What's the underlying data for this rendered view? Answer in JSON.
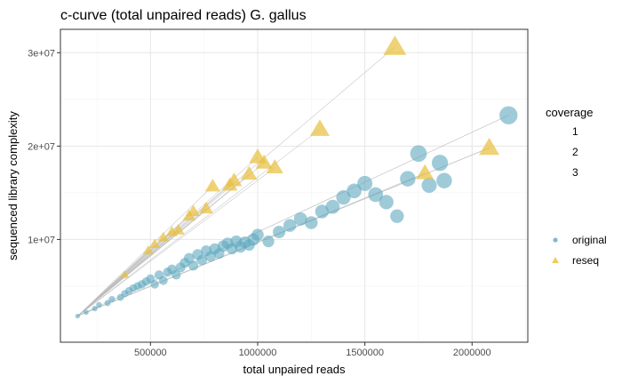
{
  "chart_data": {
    "type": "scatter",
    "title": "c-curve (total unpaired reads) G. gallus",
    "xlabel": "total unpaired reads",
    "ylabel": "sequenced library complexity",
    "xlim": [
      80000,
      2260000
    ],
    "ylim": [
      -1000000,
      32500000
    ],
    "x_ticks": [
      500000,
      1000000,
      1500000,
      2000000
    ],
    "x_tick_labels": [
      "500000",
      "1000000",
      "1500000",
      "2000000"
    ],
    "y_ticks": [
      10000000,
      20000000,
      30000000
    ],
    "y_tick_labels": [
      "1e+07",
      "2e+07",
      "3e+07"
    ],
    "grid": true,
    "legend_position": "right",
    "size_legend": {
      "title": "coverage",
      "entries": [
        "1",
        "2",
        "3"
      ]
    },
    "color_legend": {
      "entries": [
        "original",
        "reseq"
      ]
    },
    "colors": {
      "original": "#5fa9bf",
      "reseq": "#e8bf3c",
      "line": "#bbbbbb"
    },
    "series": [
      {
        "name": "original",
        "shape": "circle",
        "points": [
          [
            160000,
            1800000,
            0.2
          ],
          [
            200000,
            2200000,
            0.25
          ],
          [
            240000,
            2600000,
            0.3
          ],
          [
            260000,
            3000000,
            0.35
          ],
          [
            300000,
            3200000,
            0.4
          ],
          [
            320000,
            3600000,
            0.45
          ],
          [
            360000,
            3800000,
            0.5
          ],
          [
            380000,
            4200000,
            0.55
          ],
          [
            400000,
            4500000,
            0.6
          ],
          [
            420000,
            4800000,
            0.6
          ],
          [
            440000,
            5000000,
            0.65
          ],
          [
            460000,
            5200000,
            0.7
          ],
          [
            480000,
            5500000,
            0.7
          ],
          [
            500000,
            5800000,
            0.75
          ],
          [
            520000,
            5200000,
            0.7
          ],
          [
            540000,
            6200000,
            0.8
          ],
          [
            560000,
            5600000,
            0.75
          ],
          [
            580000,
            6500000,
            0.8
          ],
          [
            600000,
            6800000,
            0.85
          ],
          [
            620000,
            6200000,
            0.8
          ],
          [
            640000,
            7000000,
            0.9
          ],
          [
            660000,
            7500000,
            0.9
          ],
          [
            680000,
            8000000,
            0.95
          ],
          [
            700000,
            7200000,
            0.9
          ],
          [
            720000,
            8400000,
            1.0
          ],
          [
            740000,
            7800000,
            0.95
          ],
          [
            760000,
            8800000,
            1.0
          ],
          [
            780000,
            8200000,
            1.0
          ],
          [
            800000,
            9000000,
            1.05
          ],
          [
            820000,
            8500000,
            1.0
          ],
          [
            840000,
            9300000,
            1.1
          ],
          [
            860000,
            9600000,
            1.1
          ],
          [
            880000,
            9000000,
            1.05
          ],
          [
            900000,
            9800000,
            1.15
          ],
          [
            920000,
            9200000,
            1.1
          ],
          [
            940000,
            9700000,
            1.15
          ],
          [
            960000,
            9400000,
            1.1
          ],
          [
            980000,
            10000000,
            1.2
          ],
          [
            1000000,
            10500000,
            1.2
          ],
          [
            1050000,
            9800000,
            1.15
          ],
          [
            1100000,
            10800000,
            1.25
          ],
          [
            1150000,
            11500000,
            1.3
          ],
          [
            1200000,
            12200000,
            1.35
          ],
          [
            1250000,
            11800000,
            1.3
          ],
          [
            1300000,
            13000000,
            1.4
          ],
          [
            1350000,
            13500000,
            1.45
          ],
          [
            1400000,
            14500000,
            1.5
          ],
          [
            1450000,
            15200000,
            1.55
          ],
          [
            1500000,
            16000000,
            1.6
          ],
          [
            1550000,
            14800000,
            1.55
          ],
          [
            1600000,
            14000000,
            1.5
          ],
          [
            1650000,
            12500000,
            1.4
          ],
          [
            1700000,
            16500000,
            1.65
          ],
          [
            1750000,
            19200000,
            1.8
          ],
          [
            1800000,
            15800000,
            1.6
          ],
          [
            1850000,
            18200000,
            1.75
          ],
          [
            1870000,
            16300000,
            1.65
          ],
          [
            2170000,
            23300000,
            2.0
          ]
        ]
      },
      {
        "name": "reseq",
        "shape": "triangle",
        "points": [
          [
            380000,
            6200000,
            0.6
          ],
          [
            490000,
            8800000,
            0.8
          ],
          [
            520000,
            9500000,
            0.85
          ],
          [
            560000,
            10200000,
            0.9
          ],
          [
            600000,
            10800000,
            0.95
          ],
          [
            630000,
            11000000,
            1.0
          ],
          [
            680000,
            12500000,
            1.05
          ],
          [
            700000,
            13000000,
            1.1
          ],
          [
            760000,
            13300000,
            1.15
          ],
          [
            790000,
            15700000,
            1.3
          ],
          [
            870000,
            15800000,
            1.35
          ],
          [
            890000,
            16300000,
            1.4
          ],
          [
            960000,
            17000000,
            1.45
          ],
          [
            1000000,
            18800000,
            1.55
          ],
          [
            1030000,
            18200000,
            1.5
          ],
          [
            1080000,
            17700000,
            1.5
          ],
          [
            1290000,
            21800000,
            1.8
          ],
          [
            1640000,
            30600000,
            2.2
          ],
          [
            1780000,
            17100000,
            1.6
          ],
          [
            2080000,
            19800000,
            1.9
          ]
        ]
      }
    ]
  }
}
